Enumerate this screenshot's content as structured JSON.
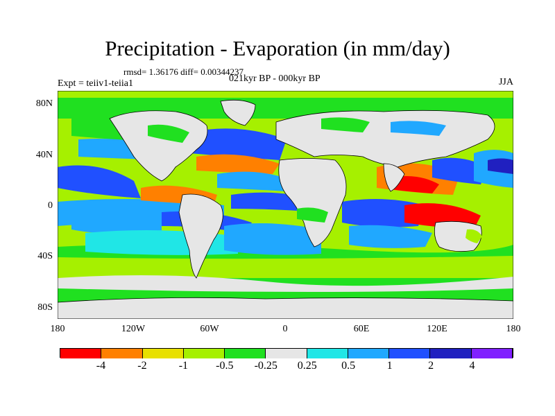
{
  "title": "Precipitation - Evaporation (in mm/day)",
  "stats": "rmsd= 1.36176 diff= 0.00344237",
  "experiment": "Expt = teiiv1-teiia1",
  "period": "021kyr BP - 000kyr BP",
  "season": "JJA",
  "lat_ticks": [
    "80N",
    "40N",
    "0",
    "40S",
    "80S"
  ],
  "lon_ticks": [
    "180",
    "120W",
    "60W",
    "0",
    "60E",
    "120E",
    "180"
  ],
  "colorbar": {
    "colors": [
      "#ff0000",
      "#ff8000",
      "#e8e000",
      "#a6f000",
      "#20e020",
      "#e6e6e6",
      "#20e6e6",
      "#20a8ff",
      "#2050ff",
      "#2020c0",
      "#8020ff"
    ],
    "labels": [
      "-4",
      "-2",
      "-1",
      "-0.5",
      "-0.25",
      "0.25",
      "0.5",
      "1",
      "2",
      "4"
    ]
  }
}
